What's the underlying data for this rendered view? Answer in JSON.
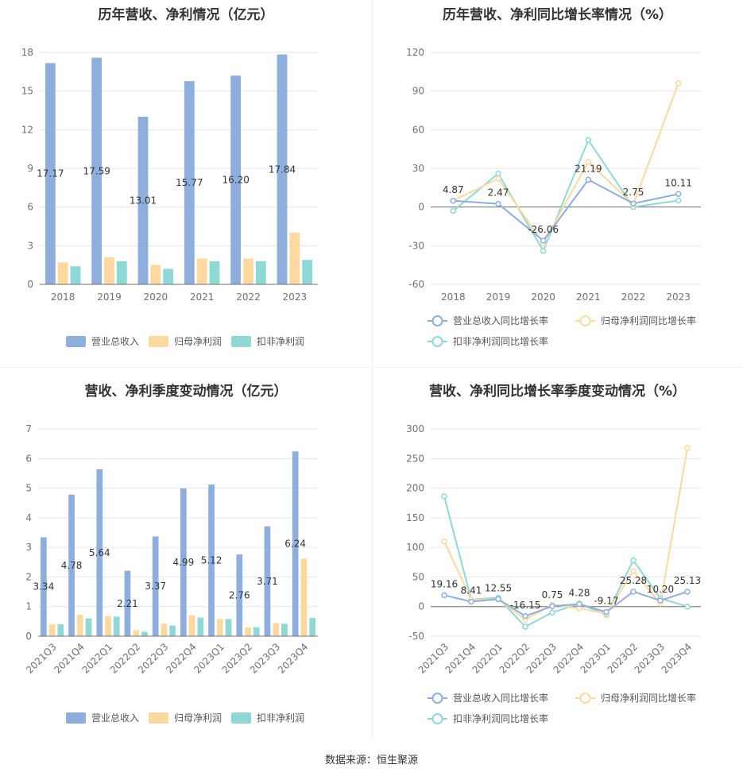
{
  "source_text": "数据来源：恒生聚源",
  "colors": {
    "revenue": "#8eafde",
    "net_profit": "#fdd9a0",
    "deducted_profit": "#8ed8d6",
    "revenue_line": "#8eafde",
    "net_line": "#fdd9a0",
    "deducted_line": "#8ed8d6",
    "grid": "#e6e6e6",
    "axis": "#6e7079"
  },
  "chart_data": [
    {
      "id": "annual_amount",
      "type": "bar",
      "title": "历年营收、净利情况（亿元）",
      "categories": [
        "2018",
        "2019",
        "2020",
        "2021",
        "2022",
        "2023"
      ],
      "ylim": [
        0,
        18
      ],
      "yticks": [
        0,
        3,
        6,
        9,
        12,
        15,
        18
      ],
      "series": [
        {
          "name": "营业总收入",
          "values": [
            17.17,
            17.59,
            13.01,
            15.77,
            16.2,
            17.84
          ],
          "labels": [
            "17.17",
            "17.59",
            "13.01",
            "15.77",
            "16.20",
            "17.84"
          ]
        },
        {
          "name": "归母净利润",
          "values": [
            1.7,
            2.1,
            1.5,
            2.0,
            2.0,
            4.0
          ]
        },
        {
          "name": "扣非净利润",
          "values": [
            1.4,
            1.8,
            1.2,
            1.8,
            1.8,
            1.9
          ]
        }
      ],
      "legend": "bottom",
      "grid": true
    },
    {
      "id": "annual_growth",
      "type": "line",
      "title": "历年营收、净利同比增长率情况（%）",
      "categories": [
        "2018",
        "2019",
        "2020",
        "2021",
        "2022",
        "2023"
      ],
      "ylim": [
        -60,
        120
      ],
      "yticks": [
        -60,
        -30,
        0,
        30,
        60,
        90,
        120
      ],
      "series": [
        {
          "name": "营业总收入同比增长率",
          "values": [
            4.87,
            2.47,
            -26.06,
            21.19,
            2.75,
            10.11
          ],
          "labels": [
            "4.87",
            "2.47",
            "-26.06",
            "21.19",
            "2.75",
            "10.11"
          ]
        },
        {
          "name": "归母净利润同比增长率",
          "values": [
            5,
            22,
            -28,
            35,
            2,
            96
          ]
        },
        {
          "name": "扣非净利润同比增长率",
          "values": [
            -3,
            26,
            -34,
            52,
            0,
            5
          ]
        }
      ],
      "legend": "bottom",
      "grid": true
    },
    {
      "id": "quarterly_amount",
      "type": "bar",
      "title": "营收、净利季度变动情况（亿元）",
      "categories": [
        "2021Q3",
        "2021Q4",
        "2022Q1",
        "2022Q2",
        "2022Q3",
        "2022Q4",
        "2023Q1",
        "2023Q2",
        "2023Q3",
        "2023Q4"
      ],
      "ylim": [
        0,
        7
      ],
      "yticks": [
        0,
        1,
        2,
        3,
        4,
        5,
        6,
        7
      ],
      "series": [
        {
          "name": "营业总收入",
          "values": [
            3.34,
            4.78,
            5.64,
            2.21,
            3.37,
            4.99,
            5.12,
            2.76,
            3.71,
            6.24
          ],
          "labels": [
            "3.34",
            "4.78",
            "5.64",
            "2.21",
            "3.37",
            "4.99",
            "5.12",
            "2.76",
            "3.71",
            "6.24"
          ]
        },
        {
          "name": "归母净利润",
          "values": [
            0.4,
            0.72,
            0.68,
            0.2,
            0.42,
            0.7,
            0.58,
            0.3,
            0.44,
            2.62
          ]
        },
        {
          "name": "扣非净利润",
          "values": [
            0.4,
            0.6,
            0.66,
            0.15,
            0.36,
            0.63,
            0.58,
            0.3,
            0.42,
            0.62
          ]
        }
      ],
      "legend": "bottom",
      "grid": true
    },
    {
      "id": "quarterly_growth",
      "type": "line",
      "title": "营收、净利同比增长率季度变动情况（%）",
      "categories": [
        "2021Q3",
        "2021Q4",
        "2022Q1",
        "2022Q2",
        "2022Q3",
        "2022Q4",
        "2023Q1",
        "2023Q2",
        "2023Q3",
        "2023Q4"
      ],
      "ylim": [
        -50,
        300
      ],
      "yticks": [
        -50,
        0,
        50,
        100,
        150,
        200,
        250,
        300
      ],
      "series": [
        {
          "name": "营业总收入同比增长率",
          "values": [
            19.16,
            8.41,
            12.55,
            -16.15,
            0.75,
            4.28,
            -9.17,
            25.28,
            10.2,
            25.13
          ],
          "labels": [
            "19.16",
            "8.41",
            "12.55",
            "-16.15",
            "0.75",
            "4.28",
            "-9.17",
            "25.28",
            "10.20",
            "25.13"
          ]
        },
        {
          "name": "归母净利润同比增长率",
          "values": [
            110,
            12,
            12,
            -22,
            3,
            -3,
            -12,
            60,
            5,
            268
          ]
        },
        {
          "name": "扣非净利润同比增长率",
          "values": [
            186,
            12,
            15,
            -34,
            -10,
            5,
            -14,
            78,
            14,
            0
          ]
        }
      ],
      "legend": "bottom",
      "grid": true
    }
  ]
}
